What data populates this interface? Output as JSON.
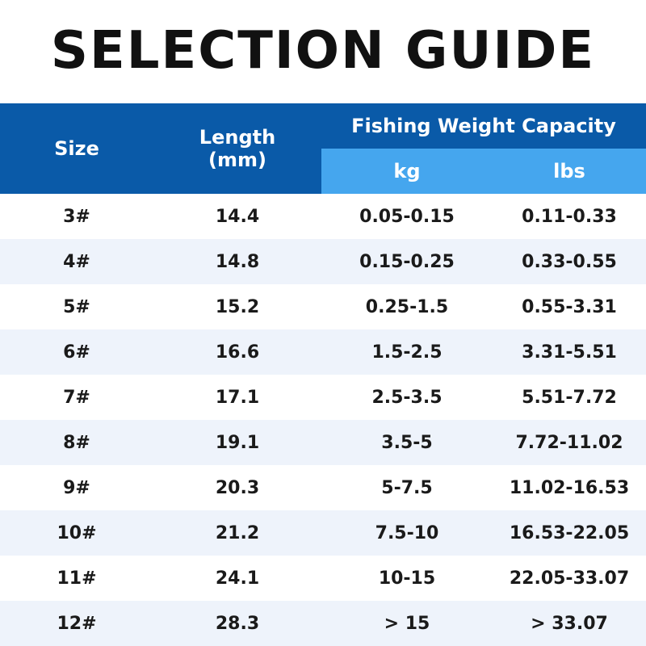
{
  "header": {
    "title": "SELECTION GUIDE"
  },
  "table": {
    "columns": {
      "size": "Size",
      "length": "Length\n(mm)",
      "capacity": "Fishing Weight Capacity",
      "kg": "kg",
      "lbs": "lbs"
    },
    "rows": [
      [
        "3#",
        "14.4",
        "0.05-0.15",
        "0.11-0.33"
      ],
      [
        "4#",
        "14.8",
        "0.15-0.25",
        "0.33-0.55"
      ],
      [
        "5#",
        "15.2",
        "0.25-1.5",
        "0.55-3.31"
      ],
      [
        "6#",
        "16.6",
        "1.5-2.5",
        "3.31-5.51"
      ],
      [
        "7#",
        "17.1",
        "2.5-3.5",
        "5.51-7.72"
      ],
      [
        "8#",
        "19.1",
        "3.5-5",
        "7.72-11.02"
      ],
      [
        "9#",
        "20.3",
        "5-7.5",
        "11.02-16.53"
      ],
      [
        "10#",
        "21.2",
        "7.5-10",
        "16.53-22.05"
      ],
      [
        "11#",
        "24.1",
        "10-15",
        "22.05-33.07"
      ],
      [
        "12#",
        "28.3",
        "> 15",
        "> 33.07"
      ]
    ]
  }
}
